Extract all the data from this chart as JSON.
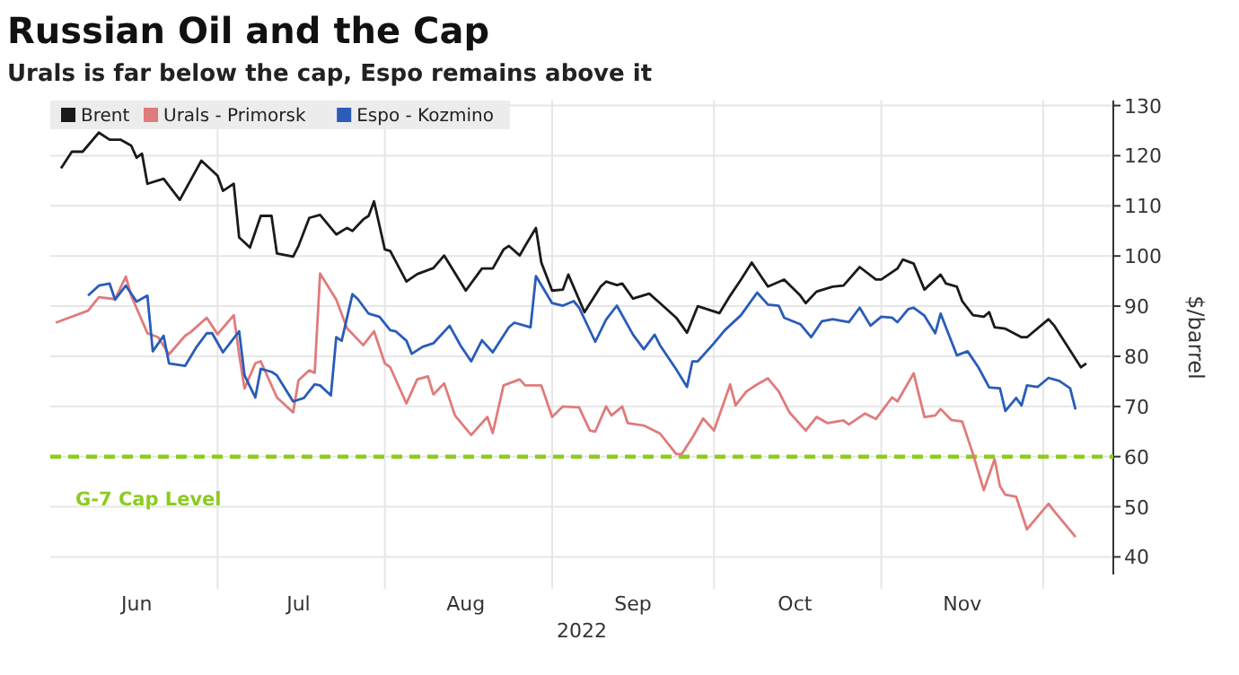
{
  "chart_data": {
    "type": "line",
    "title": "Russian Oil and the Cap",
    "subtitle": "Urals is far below the cap, Espo remains above it",
    "ylabel": "$/barrel",
    "xlabel": "2022",
    "xlim": [
      "2022-05-31",
      "2022-12-14"
    ],
    "xticks": [
      {
        "value": "2022-06-16",
        "label": "Jun"
      },
      {
        "value": "2022-07-01",
        "label": null
      },
      {
        "value": "2022-07-16",
        "label": "Jul"
      },
      {
        "value": "2022-08-01",
        "label": null
      },
      {
        "value": "2022-08-16",
        "label": "Aug"
      },
      {
        "value": "2022-09-01",
        "label": null
      },
      {
        "value": "2022-09-16",
        "label": "Sep"
      },
      {
        "value": "2022-10-01",
        "label": null
      },
      {
        "value": "2022-10-16",
        "label": "Oct"
      },
      {
        "value": "2022-11-01",
        "label": null
      },
      {
        "value": "2022-11-16",
        "label": "Nov"
      },
      {
        "value": "2022-12-01",
        "label": null
      }
    ],
    "ylim": [
      36.5,
      131
    ],
    "yticks": [
      40,
      50,
      60,
      70,
      80,
      90,
      100,
      110,
      120,
      130
    ],
    "grid": true,
    "legend": "top left",
    "line_style": "solid",
    "ref_lines": [
      {
        "axis": "y",
        "value": 60,
        "label": "G-7 Cap Level",
        "color": "#8ccc1e",
        "line_style": "dashed"
      }
    ],
    "series": [
      {
        "name": "Brent",
        "color": "#1a1a1a",
        "x": [
          "2022-06-02",
          "2022-06-04",
          "2022-06-06",
          "2022-06-09",
          "2022-06-11",
          "2022-06-13",
          "2022-06-15",
          "2022-06-16",
          "2022-06-17",
          "2022-06-18",
          "2022-06-21",
          "2022-06-24",
          "2022-06-28",
          "2022-07-01",
          "2022-07-02",
          "2022-07-04",
          "2022-07-05",
          "2022-07-07",
          "2022-07-09",
          "2022-07-11",
          "2022-07-12",
          "2022-07-15",
          "2022-07-16",
          "2022-07-18",
          "2022-07-20",
          "2022-07-23",
          "2022-07-25",
          "2022-07-26",
          "2022-07-28",
          "2022-07-29",
          "2022-07-30",
          "2022-08-01",
          "2022-08-02",
          "2022-08-05",
          "2022-08-07",
          "2022-08-10",
          "2022-08-12",
          "2022-08-16",
          "2022-08-19",
          "2022-08-21",
          "2022-08-23",
          "2022-08-24",
          "2022-08-26",
          "2022-08-27",
          "2022-08-29",
          "2022-08-30",
          "2022-09-01",
          "2022-09-03",
          "2022-09-04",
          "2022-09-07",
          "2022-09-10",
          "2022-09-11",
          "2022-09-13",
          "2022-09-14",
          "2022-09-16",
          "2022-09-19",
          "2022-09-21",
          "2022-09-24",
          "2022-09-26",
          "2022-09-28",
          "2022-10-02",
          "2022-10-04",
          "2022-10-06",
          "2022-10-08",
          "2022-10-11",
          "2022-10-14",
          "2022-10-17",
          "2022-10-18",
          "2022-10-20",
          "2022-10-23",
          "2022-10-25",
          "2022-10-28",
          "2022-10-31",
          "2022-11-01",
          "2022-11-04",
          "2022-11-05",
          "2022-11-07",
          "2022-11-09",
          "2022-11-12",
          "2022-11-13",
          "2022-11-15",
          "2022-11-16",
          "2022-11-18",
          "2022-11-20",
          "2022-11-21",
          "2022-11-22",
          "2022-11-24",
          "2022-11-27",
          "2022-11-28",
          "2022-12-02",
          "2022-12-03",
          "2022-12-08",
          "2022-12-09"
        ],
        "values": [
          117.5,
          120.8,
          120.8,
          124.6,
          123.2,
          123.2,
          122,
          119.6,
          120.4,
          114.4,
          115.4,
          111.2,
          119,
          116,
          113,
          114.4,
          103.7,
          101.7,
          108,
          108,
          100.5,
          99.9,
          102,
          107.6,
          108.2,
          104.3,
          105.6,
          105,
          107.3,
          108,
          110.9,
          101.3,
          101,
          94.9,
          96.4,
          97.6,
          100.1,
          93.1,
          97.5,
          97.5,
          101.3,
          102,
          100.1,
          102,
          105.6,
          98.7,
          93.1,
          93.3,
          96.3,
          88.8,
          93.9,
          94.9,
          94.2,
          94.5,
          91.5,
          92.5,
          90.6,
          87.7,
          84.7,
          90,
          88.6,
          92.1,
          95.3,
          98.7,
          93.9,
          95.3,
          92.1,
          90.6,
          92.9,
          93.9,
          94.1,
          97.8,
          95.3,
          95.3,
          97.5,
          99.3,
          98.5,
          93.3,
          96.3,
          94.5,
          93.9,
          91,
          88.2,
          87.9,
          88.8,
          85.8,
          85.5,
          83.8,
          83.8,
          87.4,
          86.2,
          77.8,
          78.6
        ]
      },
      {
        "name": "Urals - Primorsk",
        "color": "#e07b7b",
        "x": [
          "2022-06-01",
          "2022-06-07",
          "2022-06-09",
          "2022-06-12",
          "2022-06-14",
          "2022-06-15",
          "2022-06-18",
          "2022-06-20",
          "2022-06-22",
          "2022-06-25",
          "2022-06-26",
          "2022-06-29",
          "2022-07-01",
          "2022-07-04",
          "2022-07-05",
          "2022-07-06",
          "2022-07-08",
          "2022-07-09",
          "2022-07-12",
          "2022-07-15",
          "2022-07-16",
          "2022-07-18",
          "2022-07-19",
          "2022-07-20",
          "2022-07-23",
          "2022-07-25",
          "2022-07-28",
          "2022-07-30",
          "2022-08-01",
          "2022-08-02",
          "2022-08-05",
          "2022-08-07",
          "2022-08-09",
          "2022-08-10",
          "2022-08-12",
          "2022-08-14",
          "2022-08-17",
          "2022-08-20",
          "2022-08-21",
          "2022-08-23",
          "2022-08-26",
          "2022-08-27",
          "2022-08-30",
          "2022-09-01",
          "2022-09-03",
          "2022-09-06",
          "2022-09-08",
          "2022-09-09",
          "2022-09-11",
          "2022-09-12",
          "2022-09-14",
          "2022-09-15",
          "2022-09-18",
          "2022-09-21",
          "2022-09-24",
          "2022-09-25",
          "2022-09-27",
          "2022-09-29",
          "2022-10-01",
          "2022-10-04",
          "2022-10-05",
          "2022-10-07",
          "2022-10-09",
          "2022-10-11",
          "2022-10-13",
          "2022-10-15",
          "2022-10-18",
          "2022-10-20",
          "2022-10-22",
          "2022-10-25",
          "2022-10-26",
          "2022-10-29",
          "2022-10-31",
          "2022-11-03",
          "2022-11-04",
          "2022-11-07",
          "2022-11-09",
          "2022-11-11",
          "2022-11-12",
          "2022-11-14",
          "2022-11-16",
          "2022-11-18",
          "2022-11-20",
          "2022-11-22",
          "2022-11-23",
          "2022-11-24",
          "2022-11-26",
          "2022-11-28",
          "2022-12-02",
          "2022-12-03",
          "2022-12-07"
        ],
        "values": [
          86.7,
          89.1,
          91.8,
          91.4,
          95.9,
          92.1,
          84.6,
          83.8,
          80.4,
          84.1,
          84.8,
          87.7,
          84.4,
          88.2,
          80.4,
          73.6,
          78.6,
          79,
          71.8,
          68.8,
          75.2,
          77.2,
          76.7,
          96.5,
          91.3,
          85.6,
          82.2,
          85,
          78.6,
          77.8,
          70.6,
          75.4,
          76,
          72.4,
          74.6,
          68.2,
          64.3,
          67.9,
          64.7,
          74.2,
          75.4,
          74.2,
          74.2,
          67.9,
          70,
          69.8,
          65.2,
          65,
          70,
          68.2,
          70,
          66.7,
          66.2,
          64.6,
          60.5,
          60.5,
          63.8,
          67.6,
          65.2,
          74.4,
          70.2,
          73,
          74.4,
          75.6,
          73,
          68.8,
          65.2,
          67.9,
          66.7,
          67.2,
          66.4,
          68.6,
          67.5,
          71.8,
          71,
          76.6,
          67.9,
          68.2,
          69.5,
          67.3,
          67,
          60.5,
          53.3,
          59.5,
          54.1,
          52.4,
          52,
          45.5,
          50.6,
          49.2,
          44
        ]
      },
      {
        "name": "Espo - Kozmino",
        "color": "#2a5cb8",
        "x": [
          "2022-06-07",
          "2022-06-09",
          "2022-06-11",
          "2022-06-12",
          "2022-06-14",
          "2022-06-16",
          "2022-06-18",
          "2022-06-19",
          "2022-06-21",
          "2022-06-22",
          "2022-06-25",
          "2022-06-27",
          "2022-06-29",
          "2022-06-30",
          "2022-07-02",
          "2022-07-05",
          "2022-07-06",
          "2022-07-08",
          "2022-07-09",
          "2022-07-11",
          "2022-07-12",
          "2022-07-15",
          "2022-07-17",
          "2022-07-19",
          "2022-07-20",
          "2022-07-22",
          "2022-07-23",
          "2022-07-24",
          "2022-07-26",
          "2022-07-27",
          "2022-07-29",
          "2022-07-31",
          "2022-08-02",
          "2022-08-03",
          "2022-08-05",
          "2022-08-06",
          "2022-08-08",
          "2022-08-10",
          "2022-08-13",
          "2022-08-15",
          "2022-08-17",
          "2022-08-19",
          "2022-08-21",
          "2022-08-24",
          "2022-08-25",
          "2022-08-28",
          "2022-08-29",
          "2022-09-01",
          "2022-09-03",
          "2022-09-05",
          "2022-09-06",
          "2022-09-09",
          "2022-09-11",
          "2022-09-13",
          "2022-09-16",
          "2022-09-18",
          "2022-09-20",
          "2022-09-21",
          "2022-09-24",
          "2022-09-26",
          "2022-09-27",
          "2022-09-28",
          "2022-10-01",
          "2022-10-03",
          "2022-10-06",
          "2022-10-09",
          "2022-10-11",
          "2022-10-13",
          "2022-10-14",
          "2022-10-17",
          "2022-10-19",
          "2022-10-21",
          "2022-10-23",
          "2022-10-26",
          "2022-10-28",
          "2022-10-30",
          "2022-11-01",
          "2022-11-03",
          "2022-11-04",
          "2022-11-06",
          "2022-11-07",
          "2022-11-09",
          "2022-11-11",
          "2022-11-12",
          "2022-11-15",
          "2022-11-17",
          "2022-11-19",
          "2022-11-21",
          "2022-11-23",
          "2022-11-24",
          "2022-11-26",
          "2022-11-27",
          "2022-11-28",
          "2022-11-30",
          "2022-12-02",
          "2022-12-04",
          "2022-12-06",
          "2022-12-07"
        ],
        "values": [
          92.1,
          94.1,
          94.5,
          91.3,
          94.1,
          90.9,
          92.1,
          81,
          84.1,
          78.6,
          78.1,
          81.7,
          84.6,
          84.6,
          80.8,
          85,
          76.2,
          71.8,
          77.5,
          76.9,
          76.2,
          71,
          71.7,
          74.4,
          74.2,
          72.2,
          83.8,
          83.1,
          92.4,
          91.4,
          88.5,
          87.9,
          85.2,
          85,
          83.1,
          80.5,
          81.9,
          82.6,
          86.1,
          82.2,
          79,
          83.2,
          80.8,
          85.8,
          86.7,
          85.8,
          96,
          90.6,
          90.1,
          91,
          89.7,
          82.9,
          87.3,
          90.1,
          84.3,
          81.4,
          84.3,
          82.2,
          77.4,
          73.9,
          79,
          79,
          82.6,
          85.2,
          88.2,
          92.7,
          90.3,
          90.1,
          87.7,
          86.4,
          83.8,
          87,
          87.4,
          86.8,
          89.7,
          86.1,
          87.9,
          87.7,
          86.8,
          89.4,
          89.7,
          88.1,
          84.6,
          88.5,
          80.2,
          81,
          77.8,
          73.8,
          73.6,
          69.1,
          71.7,
          70.2,
          74.2,
          73.9,
          75.7,
          75.1,
          73.6,
          69.4
        ]
      }
    ]
  }
}
